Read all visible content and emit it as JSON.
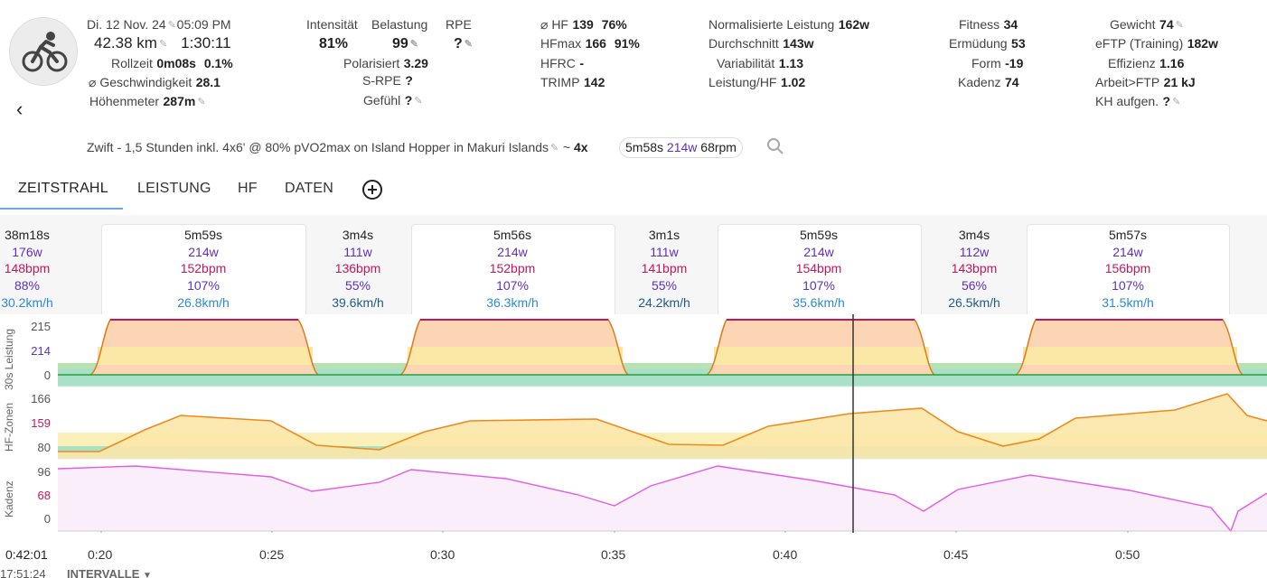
{
  "header": {
    "date": "Di. 12 Nov. 24",
    "time": "05:09 PM",
    "distance": "42.38 km",
    "duration": "1:30:11",
    "rollzeit_label": "Rollzeit",
    "rollzeit_value": "0m08s",
    "rollzeit_pct": "0.1%",
    "speed_label": "⌀ Geschwindigkeit",
    "speed_value": "28.1",
    "elev_label": "Höhenmeter",
    "elev_value": "287m",
    "intensity_label": "Intensität",
    "intensity_value": "81%",
    "load_label": "Belastung",
    "load_value": "99",
    "rpe_label": "RPE",
    "rpe_value": "?",
    "polar_label": "Polarisiert",
    "polar_value": "3.29",
    "srpe_label": "S-RPE",
    "srpe_value": "?",
    "feel_label": "Gefühl",
    "feel_value": "?",
    "hr_label": "⌀ HF",
    "hr_value": "139",
    "hr_pct": "76%",
    "hrmax_label": "HFmax",
    "hrmax_value": "166",
    "hrmax_pct": "91%",
    "hfrc_label": "HFRC",
    "hfrc_value": "-",
    "trimp_label": "TRIMP",
    "trimp_value": "142",
    "np_label": "Normalisierte Leistung",
    "np_value": "162w",
    "avg_label": "Durchschnitt",
    "avg_value": "143w",
    "var_label": "Variabilität",
    "var_value": "1.13",
    "phr_label": "Leistung/HF",
    "phr_value": "1.02",
    "fitness_label": "Fitness",
    "fitness_value": "34",
    "fatigue_label": "Ermüdung",
    "fatigue_value": "53",
    "form_label": "Form",
    "form_value": "-19",
    "cad_label": "Kadenz",
    "cad_value": "74",
    "weight_label": "Gewicht",
    "weight_value": "74",
    "eftp_label": "eFTP (Training)",
    "eftp_value": "182w",
    "eff_label": "Effizienz",
    "eff_value": "1.16",
    "work_label": "Arbeit>FTP",
    "work_value": "21 kJ",
    "carbs_label": "KH aufgen.",
    "carbs_value": "?"
  },
  "workout": {
    "name": "Zwift - 1,5 Stunden inkl. 4x6' @ 80% pVO2max on Island Hopper in Makuri Islands",
    "tilde": "~",
    "reps": "4x",
    "chip_time": "5m58s",
    "chip_power": "214w",
    "chip_cadence": "68rpm"
  },
  "tabs": [
    "ZEITSTRAHL",
    "LEISTUNG",
    "HF",
    "DATEN"
  ],
  "intervals": [
    {
      "time": "38m18s",
      "power": "176w",
      "hr": "148bpm",
      "pct": "88%",
      "speed": "30.2km/h"
    },
    {
      "time": "5m59s",
      "power": "214w",
      "hr": "152bpm",
      "pct": "107%",
      "speed": "26.8km/h"
    },
    {
      "time": "3m4s",
      "power": "111w",
      "hr": "136bpm",
      "pct": "55%",
      "speed": "39.6km/h"
    },
    {
      "time": "5m56s",
      "power": "214w",
      "hr": "152bpm",
      "pct": "107%",
      "speed": "36.3km/h"
    },
    {
      "time": "3m1s",
      "power": "111w",
      "hr": "141bpm",
      "pct": "55%",
      "speed": "24.2km/h"
    },
    {
      "time": "5m59s",
      "power": "214w",
      "hr": "154bpm",
      "pct": "107%",
      "speed": "35.6km/h"
    },
    {
      "time": "3m4s",
      "power": "112w",
      "hr": "143bpm",
      "pct": "56%",
      "speed": "26.5km/h"
    },
    {
      "time": "5m57s",
      "power": "214w",
      "hr": "156bpm",
      "pct": "107%",
      "speed": "31.5km/h"
    }
  ],
  "chart_data": {
    "type": "line",
    "x_ticks": [
      "0:20",
      "0:25",
      "0:30",
      "0:35",
      "0:40",
      "0:45",
      "0:50"
    ],
    "cursor_time": "0:42:01",
    "cursor_clock": "17:51:24",
    "intervals_button": "INTERVALLE",
    "panels": [
      {
        "ylabel": "30s Leistung",
        "ticks": [
          "215",
          "214",
          "0"
        ]
      },
      {
        "ylabel": "HF-Zonen",
        "ticks": [
          "166",
          "159",
          "80"
        ]
      },
      {
        "ylabel": "Kadenz",
        "ticks": [
          "96",
          "68",
          "0"
        ]
      }
    ],
    "colors": {
      "power_z1": "#a8e0c8",
      "power_z2": "#b8e3b0",
      "power_z3": "#fbe8a6",
      "power_z4": "#fcd6b4",
      "hr_line": "#f08a1c",
      "cad_line": "#e65ae6",
      "cad_fill": "#fbeefb"
    }
  }
}
